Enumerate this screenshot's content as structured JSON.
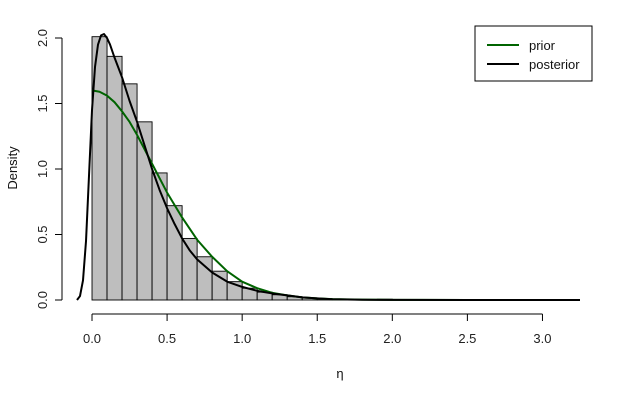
{
  "chart_data": {
    "type": "histogram",
    "title": "",
    "xlabel": "η",
    "ylabel": "Density",
    "xlim": [
      -0.1,
      3.25
    ],
    "ylim": [
      0,
      2.0
    ],
    "x_ticks": [
      0.0,
      0.5,
      1.0,
      1.5,
      2.0,
      2.5,
      3.0
    ],
    "x_tick_labels": [
      "0.0",
      "0.5",
      "1.0",
      "1.5",
      "2.0",
      "2.5",
      "3.0"
    ],
    "y_ticks": [
      0.0,
      0.5,
      1.0,
      1.5,
      2.0
    ],
    "y_tick_labels": [
      "0.0",
      "0.5",
      "1.0",
      "1.5",
      "2.0"
    ],
    "grid": false,
    "legend_position": "top-right",
    "histogram": {
      "bin_width": 0.1,
      "bins": [
        {
          "x0": 0.0,
          "x1": 0.1,
          "density": 2.01
        },
        {
          "x0": 0.1,
          "x1": 0.2,
          "density": 1.86
        },
        {
          "x0": 0.2,
          "x1": 0.3,
          "density": 1.65
        },
        {
          "x0": 0.3,
          "x1": 0.4,
          "density": 1.36
        },
        {
          "x0": 0.4,
          "x1": 0.5,
          "density": 0.97
        },
        {
          "x0": 0.5,
          "x1": 0.6,
          "density": 0.72
        },
        {
          "x0": 0.6,
          "x1": 0.7,
          "density": 0.47
        },
        {
          "x0": 0.7,
          "x1": 0.8,
          "density": 0.33
        },
        {
          "x0": 0.8,
          "x1": 0.9,
          "density": 0.22
        },
        {
          "x0": 0.9,
          "x1": 1.0,
          "density": 0.14
        },
        {
          "x0": 1.0,
          "x1": 1.1,
          "density": 0.09
        },
        {
          "x0": 1.1,
          "x1": 1.2,
          "density": 0.06
        },
        {
          "x0": 1.2,
          "x1": 1.3,
          "density": 0.04
        },
        {
          "x0": 1.3,
          "x1": 1.4,
          "density": 0.025
        },
        {
          "x0": 1.4,
          "x1": 1.5,
          "density": 0.015
        },
        {
          "x0": 1.5,
          "x1": 1.6,
          "density": 0.01
        },
        {
          "x0": 1.6,
          "x1": 1.7,
          "density": 0.006
        },
        {
          "x0": 1.7,
          "x1": 1.8,
          "density": 0.004
        },
        {
          "x0": 1.8,
          "x1": 1.9,
          "density": 0.003
        },
        {
          "x0": 1.9,
          "x1": 2.0,
          "density": 0.006
        }
      ]
    },
    "series": [
      {
        "name": "prior",
        "type": "line",
        "color": "#006400",
        "x": [
          0.0,
          0.05,
          0.1,
          0.15,
          0.2,
          0.25,
          0.3,
          0.35,
          0.4,
          0.45,
          0.5,
          0.6,
          0.7,
          0.8,
          0.9,
          1.0,
          1.1,
          1.2,
          1.3,
          1.4,
          1.5,
          1.6,
          1.8,
          2.0,
          2.2,
          2.5,
          3.0,
          3.25
        ],
        "y": [
          1.6,
          1.59,
          1.56,
          1.51,
          1.44,
          1.36,
          1.26,
          1.15,
          1.04,
          0.93,
          0.82,
          0.63,
          0.46,
          0.33,
          0.22,
          0.14,
          0.09,
          0.055,
          0.035,
          0.02,
          0.012,
          0.007,
          0.003,
          0.001,
          0.0005,
          0.0,
          0.0,
          0.0
        ]
      },
      {
        "name": "posterior",
        "type": "line",
        "color": "#000000",
        "x": [
          -0.1,
          -0.08,
          -0.06,
          -0.04,
          -0.02,
          0.0,
          0.02,
          0.04,
          0.06,
          0.08,
          0.1,
          0.12,
          0.15,
          0.2,
          0.25,
          0.3,
          0.35,
          0.4,
          0.45,
          0.5,
          0.55,
          0.6,
          0.65,
          0.7,
          0.8,
          0.9,
          1.0,
          1.1,
          1.2,
          1.3,
          1.4,
          1.5,
          1.6,
          1.8,
          2.0,
          2.5,
          3.0,
          3.25
        ],
        "y": [
          0.0,
          0.03,
          0.15,
          0.45,
          0.95,
          1.45,
          1.78,
          1.95,
          2.02,
          2.03,
          2.0,
          1.95,
          1.85,
          1.7,
          1.52,
          1.36,
          1.18,
          1.0,
          0.84,
          0.7,
          0.58,
          0.47,
          0.38,
          0.31,
          0.21,
          0.14,
          0.1,
          0.07,
          0.05,
          0.035,
          0.02,
          0.012,
          0.006,
          0.002,
          0.001,
          0.0,
          0.0,
          0.0
        ]
      }
    ]
  }
}
